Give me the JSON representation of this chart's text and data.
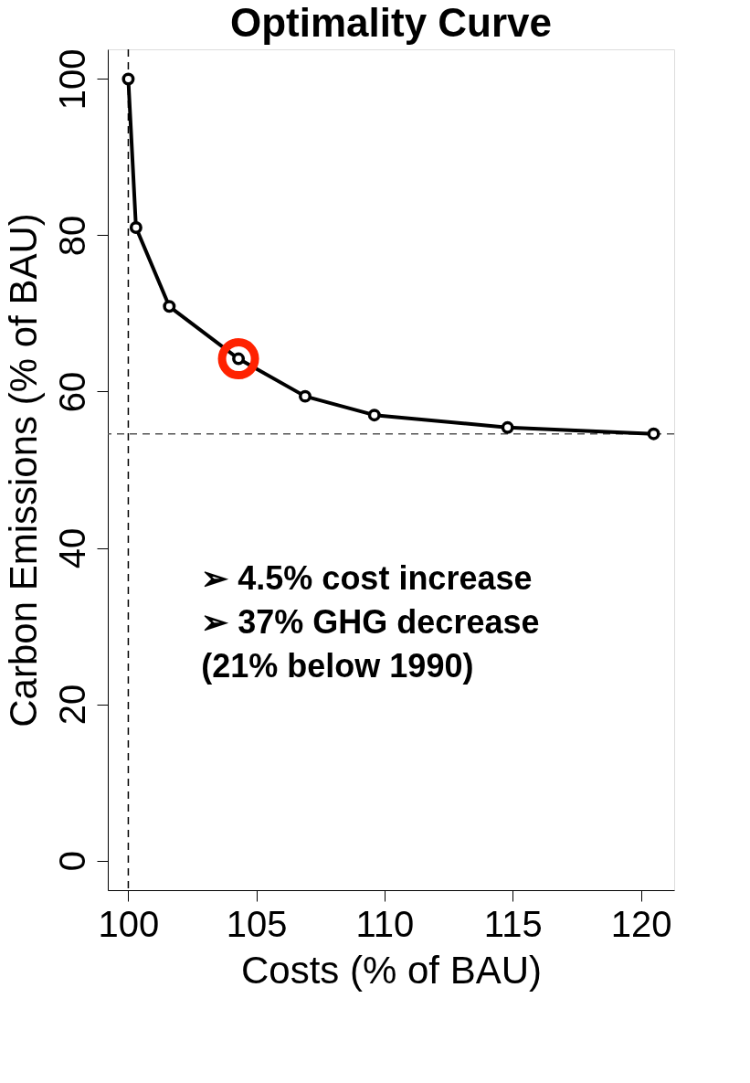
{
  "chart_data": {
    "type": "line",
    "title": "Optimality Curve",
    "xlabel": "Costs (% of BAU)",
    "ylabel": "Carbon Emissions (% of BAU)",
    "series": [
      {
        "color": "#000000",
        "x": [
          100,
          100.3,
          101.6,
          104.3,
          106.9,
          109.6,
          114.8,
          120.5
        ],
        "values": [
          100,
          81.0,
          70.9,
          64.2,
          59.4,
          57.0,
          55.4,
          54.6
        ],
        "marker": "circle",
        "line_style": "solid"
      },
      {
        "type": "scatter",
        "color": "#ff2200",
        "x": [
          104.3
        ],
        "values": [
          64.2
        ],
        "marker": "circle"
      }
    ],
    "xlim": [
      99.2,
      121.3
    ],
    "ylim": [
      -3.8,
      103.8
    ],
    "xticks": [
      100,
      105,
      110,
      115,
      120
    ],
    "yticks": [
      0,
      20,
      40,
      60,
      80,
      100
    ],
    "ref_lines": [
      {
        "axis": "x",
        "value": 100,
        "color": "#000000",
        "line_style": "dashed"
      },
      {
        "axis": "y",
        "value": 54.6,
        "color": "#555555",
        "line_style": "dashed"
      }
    ],
    "annotations": [
      "➢ 4.5% cost increase",
      "➢ 37% GHG decrease",
      "   (21% below 1990)"
    ],
    "grid": false
  }
}
